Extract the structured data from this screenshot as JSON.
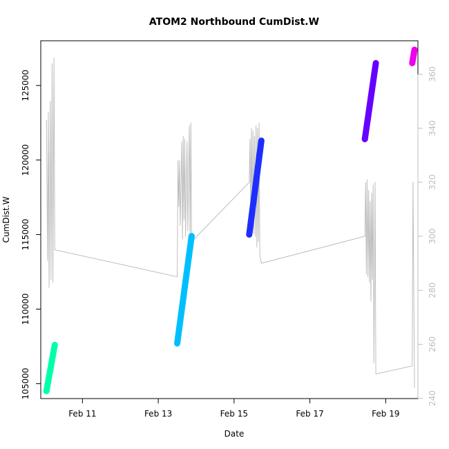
{
  "chart_data": {
    "type": "line",
    "title": "ATOM2 Northbound CumDist.W",
    "xlabel": "Date",
    "ylabel": "CumDist.W",
    "x_unit": "days in February",
    "xlim": [
      9.9,
      19.85
    ],
    "ylim": [
      104000,
      128000
    ],
    "y2lim": [
      239.9,
      372.4
    ],
    "x_ticks": [
      {
        "value": 11,
        "label": "Feb 11"
      },
      {
        "value": 13,
        "label": "Feb 13"
      },
      {
        "value": 15,
        "label": "Feb 15"
      },
      {
        "value": 17,
        "label": "Feb 17"
      },
      {
        "value": 19,
        "label": "Feb 19"
      }
    ],
    "y_ticks": [
      105000,
      110000,
      115000,
      120000,
      125000
    ],
    "y2_ticks": [
      240,
      260,
      280,
      300,
      320,
      340,
      360
    ],
    "grid": false,
    "colors": {
      "background_series": "#bebebe",
      "axis": "#000000",
      "right_axis": "#bebebe"
    },
    "series": [
      {
        "axis": "right",
        "color": "#bebebe",
        "style": "thin-line",
        "points": [
          [
            10.05,
            343
          ],
          [
            10.08,
            291
          ],
          [
            10.1,
            346
          ],
          [
            10.12,
            281
          ],
          [
            10.15,
            350
          ],
          [
            10.17,
            284
          ],
          [
            10.2,
            364
          ],
          [
            10.22,
            283
          ],
          [
            10.25,
            366
          ],
          [
            10.27,
            295
          ],
          [
            13.5,
            285
          ],
          [
            13.52,
            328
          ],
          [
            13.54,
            311
          ],
          [
            13.56,
            328
          ],
          [
            13.58,
            304
          ],
          [
            13.62,
            335
          ],
          [
            13.64,
            299
          ],
          [
            13.66,
            337
          ],
          [
            13.68,
            306
          ],
          [
            13.7,
            336
          ],
          [
            13.72,
            300
          ],
          [
            13.76,
            335
          ],
          [
            13.78,
            302
          ],
          [
            13.82,
            341
          ],
          [
            13.84,
            297
          ],
          [
            13.86,
            342
          ],
          [
            13.88,
            298
          ],
          [
            15.4,
            320
          ],
          [
            15.42,
            336
          ],
          [
            15.44,
            306
          ],
          [
            15.46,
            340
          ],
          [
            15.48,
            303
          ],
          [
            15.5,
            339
          ],
          [
            15.52,
            301
          ],
          [
            15.54,
            337
          ],
          [
            15.56,
            300
          ],
          [
            15.58,
            341
          ],
          [
            15.6,
            296
          ],
          [
            15.62,
            340
          ],
          [
            15.64,
            298
          ],
          [
            15.66,
            342
          ],
          [
            15.68,
            293
          ],
          [
            15.72,
            290
          ],
          [
            18.45,
            300
          ],
          [
            18.47,
            320
          ],
          [
            18.49,
            286
          ],
          [
            18.51,
            321
          ],
          [
            18.53,
            285
          ],
          [
            18.55,
            317
          ],
          [
            18.57,
            283
          ],
          [
            18.59,
            313
          ],
          [
            18.61,
            276
          ],
          [
            18.63,
            316
          ],
          [
            18.65,
            284
          ],
          [
            18.67,
            319
          ],
          [
            18.69,
            253
          ],
          [
            18.72,
            320
          ],
          [
            18.74,
            249
          ],
          [
            19.7,
            252
          ],
          [
            19.72,
            320
          ],
          [
            19.76,
            244
          ]
        ]
      },
      {
        "axis": "left",
        "color": "#00ffaa",
        "style": "thick-line",
        "points": [
          [
            10.05,
            104500
          ],
          [
            10.27,
            107600
          ]
        ]
      },
      {
        "axis": "left",
        "color": "#00bfff",
        "style": "thick-line",
        "points": [
          [
            13.5,
            107700
          ],
          [
            13.88,
            114900
          ]
        ]
      },
      {
        "axis": "left",
        "color": "#1e2eff",
        "style": "thick-line",
        "points": [
          [
            15.4,
            115000
          ],
          [
            15.72,
            121300
          ]
        ]
      },
      {
        "axis": "left",
        "color": "#6600ff",
        "style": "thick-line",
        "points": [
          [
            18.45,
            121400
          ],
          [
            18.74,
            126500
          ]
        ]
      },
      {
        "axis": "left",
        "color": "#ee00ee",
        "style": "thick-line",
        "points": [
          [
            19.7,
            126500
          ],
          [
            19.76,
            127400
          ]
        ]
      }
    ]
  }
}
